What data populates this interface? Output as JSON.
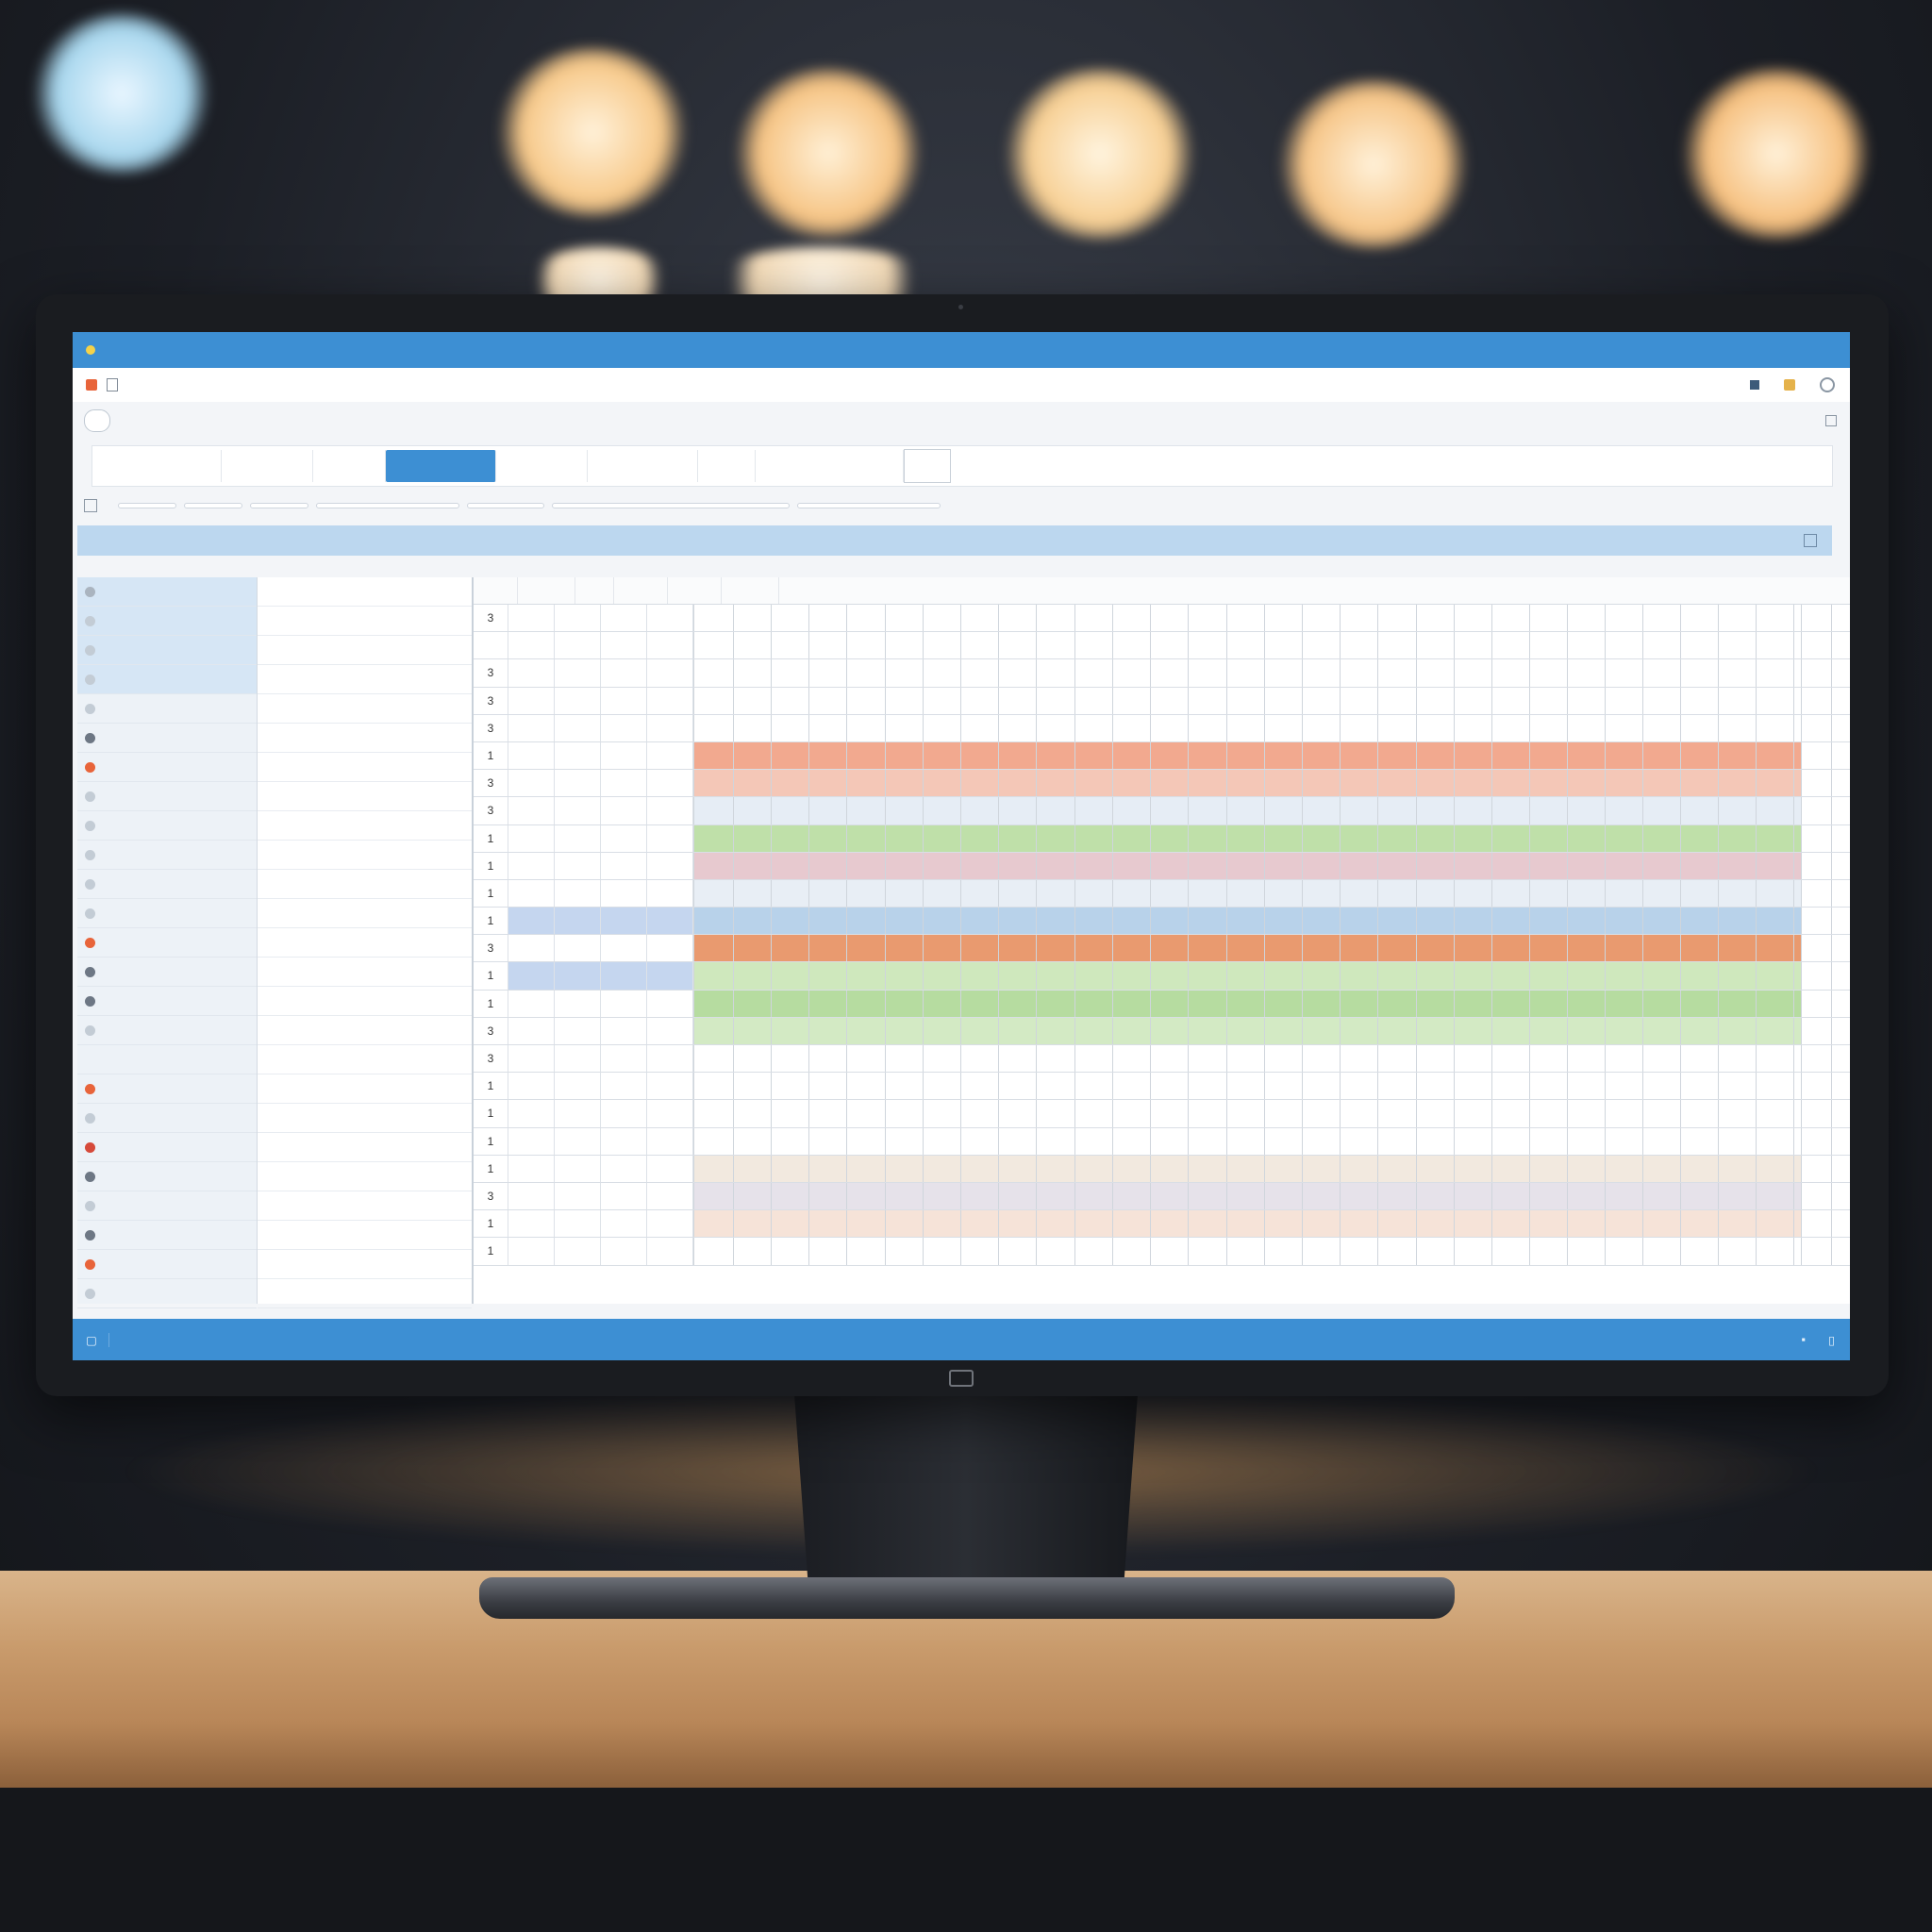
{
  "window": {
    "title": "",
    "menubar_text": "",
    "address_text": ""
  },
  "toolbar": {
    "buttons": [
      "",
      "",
      "",
      "",
      "",
      "",
      ""
    ],
    "active_index": 3
  },
  "filters": [
    "",
    "",
    "",
    "",
    "",
    "",
    ""
  ],
  "grid_header": [
    "",
    "",
    "",
    "",
    "",
    "",
    "",
    "",
    "",
    ""
  ],
  "sidebar": {
    "items": [
      {
        "label": "",
        "icon": "chevron-icon"
      },
      {
        "label": "",
        "icon": "dot-icon"
      },
      {
        "label": "",
        "icon": "dot-icon"
      },
      {
        "label": "",
        "icon": "dot-icon"
      },
      {
        "label": "",
        "icon": "dot-icon"
      },
      {
        "label": "",
        "icon": "circle-icon"
      },
      {
        "label": "",
        "icon": "alert-icon"
      },
      {
        "label": "",
        "icon": "dot-icon"
      },
      {
        "label": "",
        "icon": "dot-icon"
      },
      {
        "label": "",
        "icon": "dot-icon"
      },
      {
        "label": "",
        "icon": "dot-icon"
      },
      {
        "label": "",
        "icon": "dot-icon"
      },
      {
        "label": "",
        "icon": "alert-icon"
      },
      {
        "label": "",
        "icon": "circle-icon"
      },
      {
        "label": "",
        "icon": "circle-icon"
      },
      {
        "label": "",
        "icon": "dot-icon"
      },
      {
        "label": "",
        "icon": "blank"
      },
      {
        "label": "",
        "icon": "alert-icon"
      },
      {
        "label": "",
        "icon": "checkbox-icon"
      },
      {
        "label": "",
        "icon": "close-icon"
      },
      {
        "label": "",
        "icon": "circle-icon"
      },
      {
        "label": "",
        "icon": "dot-icon"
      },
      {
        "label": "",
        "icon": "folder-icon"
      },
      {
        "label": "",
        "icon": "alert-icon"
      },
      {
        "label": "",
        "icon": "dot-icon"
      }
    ]
  },
  "grid": {
    "columns": [
      "",
      "",
      "",
      "",
      "",
      ""
    ],
    "rows": [
      {
        "id": "3",
        "bar_color": ""
      },
      {
        "id": "",
        "bar_color": ""
      },
      {
        "id": "3",
        "bar_color": ""
      },
      {
        "id": "3",
        "bar_color": ""
      },
      {
        "id": "3",
        "bar_color": ""
      },
      {
        "id": "1",
        "bar_color": "#f2a98f"
      },
      {
        "id": "3",
        "bar_color": "#f4c7b7"
      },
      {
        "id": "3",
        "bar_color": "#e6edf5"
      },
      {
        "id": "1",
        "bar_color": "#bfe0a9"
      },
      {
        "id": "1",
        "bar_color": "#e7c9cf"
      },
      {
        "id": "1",
        "bar_color": "#e8eef5"
      },
      {
        "id": "1",
        "bar_color": "#b8d2ea"
      },
      {
        "id": "3",
        "bar_color": "#e99a6f"
      },
      {
        "id": "1",
        "bar_color": "#cfe8bd"
      },
      {
        "id": "1",
        "bar_color": "#b6dca0"
      },
      {
        "id": "3",
        "bar_color": "#d3eac4"
      },
      {
        "id": "3",
        "bar_color": ""
      },
      {
        "id": "1",
        "bar_color": ""
      },
      {
        "id": "1",
        "bar_color": ""
      },
      {
        "id": "1",
        "bar_color": ""
      },
      {
        "id": "1",
        "bar_color": "#f2e9df"
      },
      {
        "id": "3",
        "bar_color": "#e6e2ea"
      },
      {
        "id": "1",
        "bar_color": "#f6e3d8"
      },
      {
        "id": "1",
        "bar_color": ""
      }
    ]
  },
  "statusbar": {
    "items": [
      "",
      "",
      "",
      "",
      "",
      "",
      ""
    ]
  },
  "colors": {
    "accent": "#3d8fd3",
    "header": "#bcd7ef",
    "sidebar": "#edf2f7"
  }
}
